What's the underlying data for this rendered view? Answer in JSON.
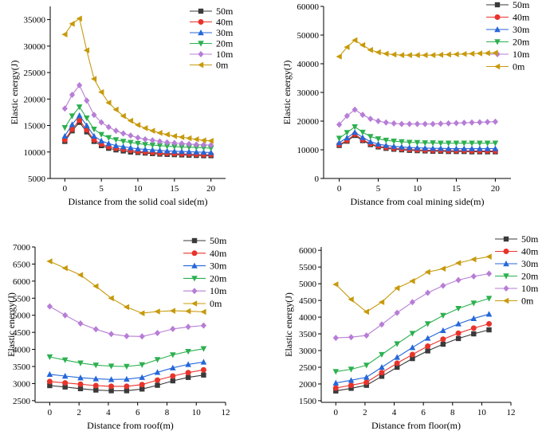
{
  "chart_data": [
    {
      "type": "line",
      "xlabel": "Distance from the solid coal side(m)",
      "ylabel": "Elastic energy(J)",
      "xlim": [
        -2,
        22
      ],
      "ylim": [
        5000,
        37500
      ],
      "xticks": [
        0,
        5,
        10,
        15,
        20
      ],
      "yticks": [
        5000,
        10000,
        15000,
        20000,
        25000,
        30000,
        35000
      ],
      "x": [
        0,
        1,
        2,
        3,
        4,
        5,
        6,
        7,
        8,
        9,
        10,
        11,
        12,
        13,
        14,
        15,
        16,
        17,
        18,
        19,
        20
      ],
      "series": [
        {
          "name": "50m",
          "values": [
            12000,
            14000,
            15600,
            13800,
            12000,
            11200,
            10700,
            10400,
            10200,
            10000,
            9900,
            9800,
            9700,
            9600,
            9550,
            9500,
            9450,
            9400,
            9350,
            9300,
            9300
          ]
        },
        {
          "name": "40m",
          "values": [
            12300,
            14300,
            16000,
            14200,
            12300,
            11500,
            11000,
            10700,
            10500,
            10300,
            10100,
            10000,
            9900,
            9800,
            9750,
            9700,
            9650,
            9600,
            9550,
            9500,
            9500
          ]
        },
        {
          "name": "30m",
          "values": [
            13000,
            15200,
            16900,
            15000,
            13000,
            12100,
            11600,
            11200,
            11000,
            10800,
            10600,
            10500,
            10400,
            10300,
            10200,
            10150,
            10100,
            10050,
            10000,
            9950,
            9900
          ]
        },
        {
          "name": "20m",
          "values": [
            14600,
            16800,
            18500,
            16400,
            14300,
            13300,
            12700,
            12300,
            12000,
            11800,
            11600,
            11400,
            11300,
            11200,
            11100,
            11000,
            10950,
            10900,
            10850,
            10800,
            10700
          ]
        },
        {
          "name": "10m",
          "values": [
            18200,
            20800,
            22600,
            19700,
            17000,
            15600,
            14700,
            14000,
            13500,
            13100,
            12700,
            12400,
            12200,
            12000,
            11800,
            11700,
            11600,
            11500,
            11400,
            11350,
            11300
          ]
        },
        {
          "name": "0m",
          "values": [
            32200,
            34200,
            35200,
            29200,
            23800,
            21300,
            19300,
            18000,
            16800,
            15900,
            15100,
            14500,
            14000,
            13600,
            13300,
            13000,
            12800,
            12600,
            12400,
            12200,
            12100
          ]
        }
      ]
    },
    {
      "type": "line",
      "xlabel": "Distance from coal mining side(m)",
      "ylabel": "Elastic energy(J)",
      "xlim": [
        -2,
        22
      ],
      "ylim": [
        0,
        60000
      ],
      "xticks": [
        0,
        5,
        10,
        15,
        20
      ],
      "yticks": [
        0,
        10000,
        20000,
        30000,
        40000,
        50000,
        60000
      ],
      "x": [
        0,
        1,
        2,
        3,
        4,
        5,
        6,
        7,
        8,
        9,
        10,
        11,
        12,
        13,
        14,
        15,
        16,
        17,
        18,
        19,
        20
      ],
      "series": [
        {
          "name": "50m",
          "values": [
            11500,
            13000,
            15000,
            13200,
            11800,
            11000,
            10500,
            10200,
            10000,
            9800,
            9700,
            9600,
            9500,
            9500,
            9400,
            9400,
            9400,
            9300,
            9300,
            9300,
            9300
          ]
        },
        {
          "name": "40m",
          "values": [
            11800,
            13300,
            15400,
            13500,
            12100,
            11300,
            10800,
            10500,
            10300,
            10100,
            10000,
            9900,
            9800,
            9800,
            9700,
            9700,
            9700,
            9600,
            9600,
            9600,
            9600
          ]
        },
        {
          "name": "30m",
          "values": [
            12500,
            14200,
            16100,
            14300,
            12800,
            12000,
            11500,
            11200,
            11000,
            10800,
            10700,
            10600,
            10500,
            10500,
            10400,
            10400,
            10400,
            10400,
            10400,
            10400,
            10400
          ]
        },
        {
          "name": "20m",
          "values": [
            14000,
            16000,
            18000,
            16100,
            14600,
            13800,
            13300,
            13000,
            12800,
            12600,
            12500,
            12400,
            12400,
            12300,
            12300,
            12300,
            12300,
            12300,
            12300,
            12300,
            12300
          ]
        },
        {
          "name": "10m",
          "values": [
            18800,
            21800,
            24000,
            22200,
            20800,
            20000,
            19500,
            19200,
            19000,
            19000,
            19000,
            19000,
            19000,
            19100,
            19200,
            19300,
            19400,
            19500,
            19600,
            19700,
            19800
          ]
        },
        {
          "name": "0m",
          "values": [
            42500,
            45800,
            48200,
            46500,
            44800,
            44000,
            43500,
            43200,
            43000,
            43000,
            43000,
            43000,
            43000,
            43100,
            43200,
            43300,
            43400,
            43500,
            43600,
            43700,
            43800
          ]
        }
      ]
    },
    {
      "type": "line",
      "xlabel": "Distance from roof(m)",
      "ylabel": "Elastic energy(J)",
      "xlim": [
        -1,
        12
      ],
      "ylim": [
        2450,
        7000
      ],
      "xticks": [
        0,
        2,
        4,
        6,
        8,
        10,
        12
      ],
      "yticks": [
        2500,
        3000,
        3500,
        4000,
        4500,
        5000,
        5500,
        6000,
        6500,
        7000
      ],
      "x": [
        0,
        1.05,
        2.1,
        3.15,
        4.2,
        5.25,
        6.3,
        7.35,
        8.4,
        9.45,
        10.5
      ],
      "series": [
        {
          "name": "50m",
          "values": [
            2940,
            2900,
            2850,
            2810,
            2790,
            2790,
            2840,
            2950,
            3080,
            3180,
            3250
          ]
        },
        {
          "name": "40m",
          "values": [
            3060,
            3020,
            2980,
            2940,
            2920,
            2920,
            2970,
            3100,
            3220,
            3320,
            3400
          ]
        },
        {
          "name": "30m",
          "values": [
            3270,
            3220,
            3170,
            3140,
            3120,
            3130,
            3180,
            3330,
            3460,
            3560,
            3630
          ]
        },
        {
          "name": "20m",
          "values": [
            3780,
            3690,
            3600,
            3540,
            3510,
            3500,
            3550,
            3700,
            3840,
            3940,
            4020
          ]
        },
        {
          "name": "10m",
          "values": [
            5260,
            5000,
            4760,
            4590,
            4450,
            4390,
            4380,
            4480,
            4600,
            4660,
            4700
          ]
        },
        {
          "name": "0m",
          "values": [
            6580,
            6380,
            6180,
            5850,
            5500,
            5240,
            5060,
            5110,
            5130,
            5120,
            5100
          ]
        }
      ]
    },
    {
      "type": "line",
      "xlabel": "Distance from floor(m)",
      "ylabel": "Elastic energy(J)",
      "xlim": [
        -1,
        12
      ],
      "ylim": [
        1450,
        6100
      ],
      "xticks": [
        0,
        2,
        4,
        6,
        8,
        10,
        12
      ],
      "yticks": [
        1500,
        2000,
        2500,
        3000,
        3500,
        4000,
        4500,
        5000,
        5500,
        6000
      ],
      "x": [
        0,
        1.05,
        2.1,
        3.15,
        4.2,
        5.25,
        6.3,
        7.35,
        8.4,
        9.45,
        10.5
      ],
      "series": [
        {
          "name": "50m",
          "values": [
            1790,
            1870,
            1960,
            2230,
            2500,
            2760,
            2990,
            3190,
            3360,
            3500,
            3620
          ]
        },
        {
          "name": "40m",
          "values": [
            1880,
            1960,
            2050,
            2340,
            2620,
            2880,
            3130,
            3340,
            3520,
            3670,
            3800
          ]
        },
        {
          "name": "30m",
          "values": [
            2030,
            2110,
            2200,
            2500,
            2800,
            3090,
            3370,
            3600,
            3800,
            3960,
            4090
          ]
        },
        {
          "name": "20m",
          "values": [
            2370,
            2440,
            2560,
            2880,
            3200,
            3510,
            3800,
            4050,
            4260,
            4420,
            4560
          ]
        },
        {
          "name": "10m",
          "values": [
            3380,
            3400,
            3450,
            3780,
            4130,
            4450,
            4730,
            4940,
            5110,
            5220,
            5300
          ]
        },
        {
          "name": "0m",
          "values": [
            4980,
            4530,
            4160,
            4450,
            4870,
            5080,
            5350,
            5450,
            5620,
            5730,
            5810
          ]
        }
      ]
    }
  ],
  "style": {
    "series_colors": [
      "#3a3a3a",
      "#e8332b",
      "#2567d9",
      "#2cb04f",
      "#b77dd6",
      "#c79a0c"
    ],
    "series_markers": [
      "square",
      "circle",
      "triangle-up",
      "triangle-down",
      "diamond",
      "triangle-left"
    ]
  }
}
